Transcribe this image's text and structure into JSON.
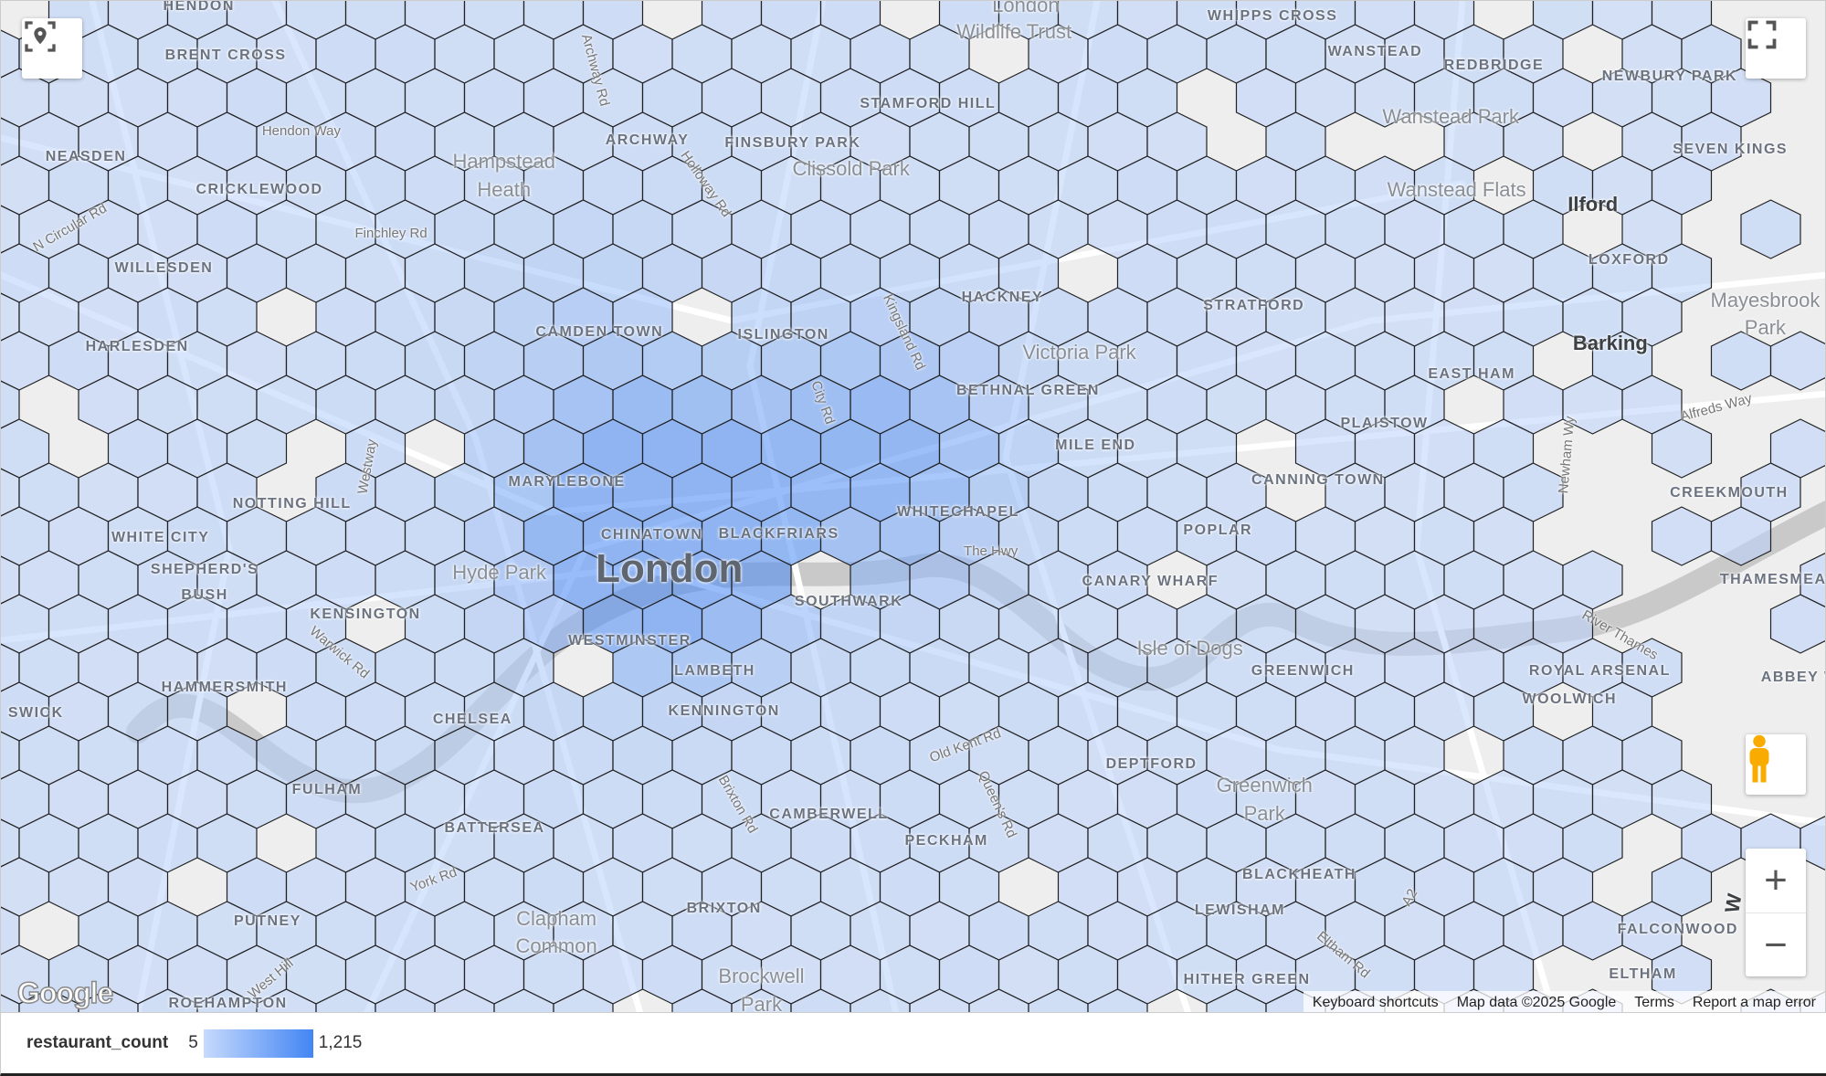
{
  "legend": {
    "field": "restaurant_count",
    "min_label": "5",
    "max_label": "1,215",
    "min": 5,
    "max": 1215,
    "color_low": "#c6dafc",
    "color_high": "#4285f4"
  },
  "attribution": {
    "keyboard": "Keyboard shortcuts",
    "map_data": "Map data ©2025 Google",
    "terms": "Terms",
    "report": "Report a map error"
  },
  "logo": "Google",
  "controls": {
    "locate_icon": "my-location-icon",
    "fullscreen_icon": "fullscreen-icon",
    "pegman_icon": "street-view-pegman-icon",
    "zoom_in": "+",
    "zoom_out": "−"
  },
  "map_colors": {
    "land": "#eeeeee",
    "road": "#ffffff",
    "water": "#c9c9c9",
    "hex_stroke": "#222222"
  },
  "labels": [
    {
      "t": "HENDON",
      "c": ""
    },
    {
      "t": "BRENT CROSS",
      "c": ""
    },
    {
      "t": "NEASDEN",
      "c": ""
    },
    {
      "t": "CRICKLEWOOD",
      "c": ""
    },
    {
      "t": "WILLESDEN",
      "c": ""
    },
    {
      "t": "HARLESDEN",
      "c": ""
    },
    {
      "t": "NOTTING HILL",
      "c": ""
    },
    {
      "t": "WHITE CITY",
      "c": ""
    },
    {
      "t": "SHEPHERD'S",
      "c": ""
    },
    {
      "t": "BUSH",
      "c": ""
    },
    {
      "t": "KENSINGTON",
      "c": ""
    },
    {
      "t": "HAMMERSMITH",
      "c": ""
    },
    {
      "t": "CHELSEA",
      "c": ""
    },
    {
      "t": "FULHAM",
      "c": ""
    },
    {
      "t": "BATTERSEA",
      "c": ""
    },
    {
      "t": "PUTNEY",
      "c": ""
    },
    {
      "t": "ROEHAMPTON",
      "c": ""
    },
    {
      "t": "Hampstead",
      "c": "park"
    },
    {
      "t": "Heath",
      "c": "park"
    },
    {
      "t": "ARCHWAY",
      "c": ""
    },
    {
      "t": "FINSBURY PARK",
      "c": ""
    },
    {
      "t": "STAMFORD HILL",
      "c": ""
    },
    {
      "t": "Clissold Park",
      "c": "park"
    },
    {
      "t": "London",
      "c": "park"
    },
    {
      "t": "Wildlife Trust",
      "c": "park"
    },
    {
      "t": "WHIPPS CROSS",
      "c": ""
    },
    {
      "t": "WANSTEAD",
      "c": ""
    },
    {
      "t": "REDBRIDGE",
      "c": ""
    },
    {
      "t": "NEWBURY PARK",
      "c": ""
    },
    {
      "t": "Wanstead Park",
      "c": "park"
    },
    {
      "t": "SEVEN KINGS",
      "c": ""
    },
    {
      "t": "Wanstead Flats",
      "c": "park"
    },
    {
      "t": "Ilford",
      "c": "town"
    },
    {
      "t": "LOXFORD",
      "c": ""
    },
    {
      "t": "Mayesbrook",
      "c": "park"
    },
    {
      "t": "Park",
      "c": "park"
    },
    {
      "t": "Barking",
      "c": "town"
    },
    {
      "t": "CAMDEN TOWN",
      "c": ""
    },
    {
      "t": "ISLINGTON",
      "c": ""
    },
    {
      "t": "HACKNEY",
      "c": ""
    },
    {
      "t": "STRATFORD",
      "c": ""
    },
    {
      "t": "Victoria Park",
      "c": "park"
    },
    {
      "t": "BETHNAL GREEN",
      "c": ""
    },
    {
      "t": "EAST HAM",
      "c": ""
    },
    {
      "t": "PLAISTOW",
      "c": ""
    },
    {
      "t": "Alfreds Way",
      "c": "road"
    },
    {
      "t": "MILE END",
      "c": ""
    },
    {
      "t": "MARYLEBONE",
      "c": ""
    },
    {
      "t": "WHITECHAPEL",
      "c": ""
    },
    {
      "t": "CANNING TOWN",
      "c": ""
    },
    {
      "t": "CREEKMOUTH",
      "c": ""
    },
    {
      "t": "CHINATOWN",
      "c": ""
    },
    {
      "t": "BLACKFRIARS",
      "c": ""
    },
    {
      "t": "London",
      "c": "big"
    },
    {
      "t": "Hyde Park",
      "c": "park"
    },
    {
      "t": "The Hwy",
      "c": "road"
    },
    {
      "t": "POPLAR",
      "c": ""
    },
    {
      "t": "CANARY WHARF",
      "c": ""
    },
    {
      "t": "THAMESMEAD",
      "c": ""
    },
    {
      "t": "SOUTHWARK",
      "c": ""
    },
    {
      "t": "WESTMINSTER",
      "c": ""
    },
    {
      "t": "Isle of Dogs",
      "c": "park"
    },
    {
      "t": "GREENWICH",
      "c": ""
    },
    {
      "t": "LAMBETH",
      "c": ""
    },
    {
      "t": "ROYAL ARSENAL",
      "c": ""
    },
    {
      "t": "ABBEY W",
      "c": ""
    },
    {
      "t": "WOOLWICH",
      "c": ""
    },
    {
      "t": "KENNINGTON",
      "c": ""
    },
    {
      "t": "DEPTFORD",
      "c": ""
    },
    {
      "t": "Greenwich",
      "c": "park"
    },
    {
      "t": "Park",
      "c": "park"
    },
    {
      "t": "CAMBERWELL",
      "c": ""
    },
    {
      "t": "PECKHAM",
      "c": ""
    },
    {
      "t": "BLACKHEATH",
      "c": ""
    },
    {
      "t": "LEWISHAM",
      "c": ""
    },
    {
      "t": "BRIXTON",
      "c": ""
    },
    {
      "t": "Clapham",
      "c": "park"
    },
    {
      "t": "Common",
      "c": "park"
    },
    {
      "t": "FALCONWOOD",
      "c": ""
    },
    {
      "t": "Brockwell",
      "c": "park"
    },
    {
      "t": "Park",
      "c": "park"
    },
    {
      "t": "HITHER GREEN",
      "c": ""
    },
    {
      "t": "ELTHAM",
      "c": ""
    },
    {
      "t": "SWICK",
      "c": ""
    },
    {
      "t": "Hendon Way",
      "c": "road"
    },
    {
      "t": "Finchley Rd",
      "c": "road"
    },
    {
      "t": "Archway Rd",
      "c": "road"
    },
    {
      "t": "Holloway Rd",
      "c": "road"
    },
    {
      "t": "Kingsland Rd",
      "c": "road"
    },
    {
      "t": "City Rd",
      "c": "road"
    },
    {
      "t": "Westway",
      "c": "road"
    },
    {
      "t": "Warwick Rd",
      "c": "road"
    },
    {
      "t": "Old Kent Rd",
      "c": "road"
    },
    {
      "t": "Queen's Rd",
      "c": "road"
    },
    {
      "t": "Brixton Rd",
      "c": "road"
    },
    {
      "t": "Eltham Rd",
      "c": "road"
    },
    {
      "t": "Newham Wy",
      "c": "road"
    },
    {
      "t": "River Thames",
      "c": "road"
    },
    {
      "t": "West Hill",
      "c": "road"
    },
    {
      "t": "York Rd",
      "c": "road"
    },
    {
      "t": "N Circular Rd",
      "c": "road"
    },
    {
      "t": "A2",
      "c": "road"
    },
    {
      "t": "W",
      "c": "town"
    }
  ]
}
